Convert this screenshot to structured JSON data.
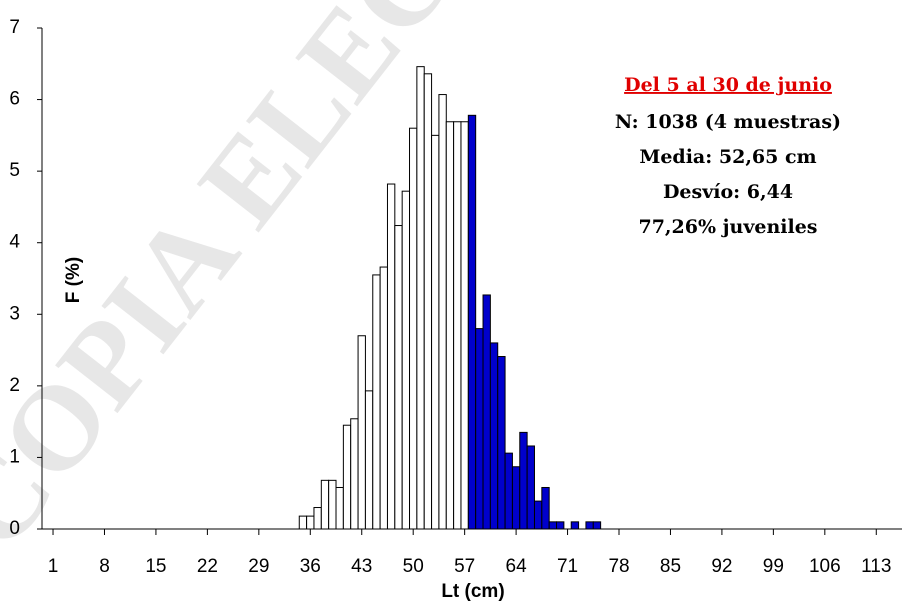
{
  "chart_data": {
    "type": "histogram",
    "x": [
      35,
      36,
      37,
      38,
      39,
      40,
      41,
      42,
      43,
      44,
      45,
      46,
      47,
      48,
      49,
      50,
      51,
      52,
      53,
      54,
      55,
      56,
      57,
      58,
      59,
      60,
      61,
      62,
      63,
      64,
      65,
      66,
      67,
      68,
      69,
      70,
      72,
      74,
      75
    ],
    "values": [
      0.18,
      0.18,
      0.3,
      0.68,
      0.68,
      0.58,
      1.45,
      1.54,
      2.7,
      1.93,
      3.55,
      3.66,
      4.82,
      4.24,
      4.72,
      5.6,
      6.46,
      6.36,
      5.5,
      6.07,
      5.69,
      5.69,
      5.69,
      5.78,
      2.8,
      3.27,
      2.6,
      2.41,
      1.06,
      0.87,
      1.35,
      1.16,
      0.39,
      0.58,
      0.1,
      0.1,
      0.1,
      0.1,
      0.1
    ],
    "bar_colors": [
      "#ffffff",
      "#ffffff",
      "#ffffff",
      "#ffffff",
      "#ffffff",
      "#ffffff",
      "#ffffff",
      "#ffffff",
      "#ffffff",
      "#ffffff",
      "#ffffff",
      "#ffffff",
      "#ffffff",
      "#ffffff",
      "#ffffff",
      "#ffffff",
      "#ffffff",
      "#ffffff",
      "#ffffff",
      "#ffffff",
      "#ffffff",
      "#ffffff",
      "#ffffff",
      "#0000cc",
      "#0000cc",
      "#0000cc",
      "#0000cc",
      "#0000cc",
      "#0000cc",
      "#0000cc",
      "#0000cc",
      "#0000cc",
      "#0000cc",
      "#0000cc",
      "#0000cc",
      "#0000cc",
      "#0000cc",
      "#0000cc",
      "#0000cc"
    ],
    "xlim": [
      -0.5,
      116.5
    ],
    "xticks": [
      1,
      8,
      15,
      22,
      29,
      36,
      43,
      50,
      57,
      64,
      71,
      78,
      85,
      92,
      99,
      106,
      113
    ],
    "ylim": [
      0,
      7
    ],
    "yticks": [
      0,
      1,
      2,
      3,
      4,
      5,
      6,
      7
    ],
    "x_label": "Lt (cm)",
    "y_label": "F (%)",
    "annotation_title": "Del 5 al 30 de junio",
    "annotations": [
      "N: 1038 (4 muestras)",
      "Media: 52,65 cm",
      "Desvío: 6,44",
      "77,26% juveniles"
    ],
    "watermark": "COPIA ELEC"
  }
}
